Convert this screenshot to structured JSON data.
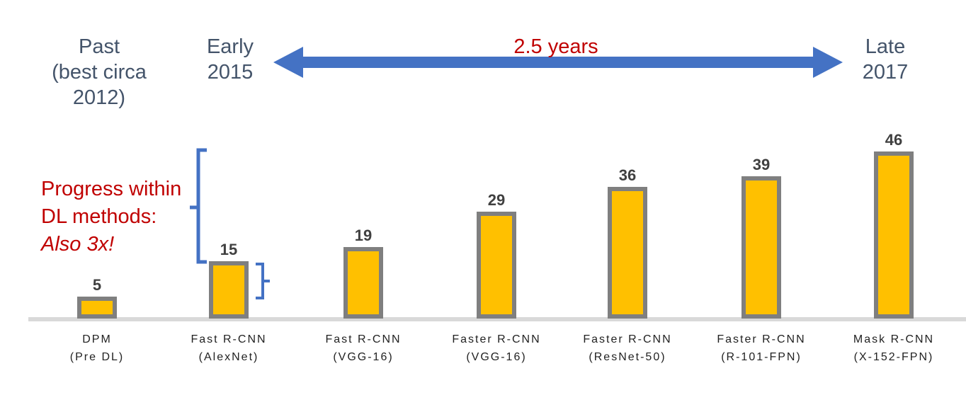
{
  "header": {
    "past": [
      "Past",
      "(best circa",
      "2012)"
    ],
    "early": [
      "Early",
      "2015"
    ],
    "late": [
      "Late",
      "2017"
    ],
    "range_label": "2.5 years"
  },
  "annotation": {
    "line1": "Progress within",
    "line2": "DL methods:",
    "line3": "Also 3x!"
  },
  "colors": {
    "bar_fill": "#ffc000",
    "bar_border": "#7f7f7f",
    "arrow": "#4472c4",
    "brace": "#4472c4",
    "highlight_text": "#c00000",
    "header_text": "#44546a",
    "baseline": "#d9d9d9"
  },
  "chart_data": {
    "type": "bar",
    "categories": [
      [
        "DPM",
        "(Pre DL)"
      ],
      [
        "Fast R-CNN",
        "(AlexNet)"
      ],
      [
        "Fast R-CNN",
        "(VGG-16)"
      ],
      [
        "Faster R-CNN",
        "(VGG-16)"
      ],
      [
        "Faster R-CNN",
        "(ResNet-50)"
      ],
      [
        "Faster R-CNN",
        "(R-101-FPN)"
      ],
      [
        "Mask R-CNN",
        "(X-152-FPN)"
      ]
    ],
    "values": [
      5,
      15,
      19,
      29,
      36,
      39,
      46
    ],
    "data_labels": [
      "5",
      "15",
      "19",
      "29",
      "36",
      "39",
      "46"
    ],
    "ylim": [
      0,
      50
    ],
    "grid": false,
    "legend": "none"
  }
}
